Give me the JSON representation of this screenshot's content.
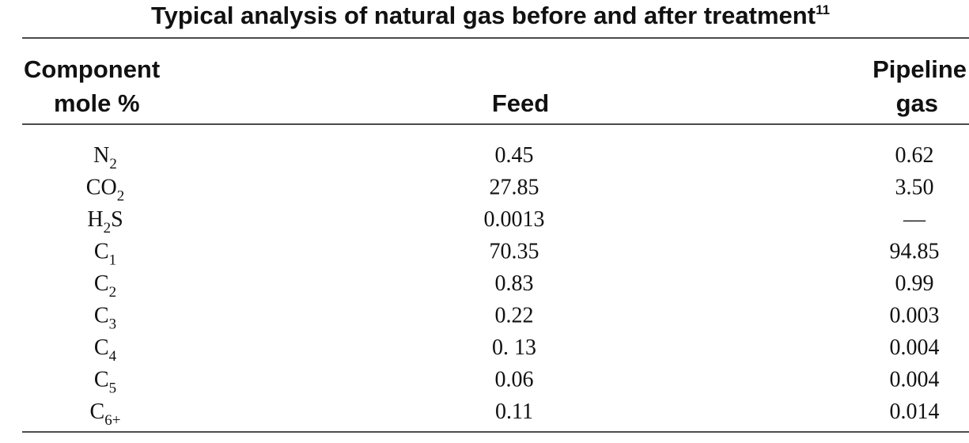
{
  "title": {
    "text": "Typical analysis of natural gas before and after treatment",
    "footnote": "11"
  },
  "table": {
    "header": {
      "component": [
        "Component",
        "mole %"
      ],
      "feed": "Feed",
      "pipeline": [
        "Pipeline",
        "gas"
      ]
    },
    "rows": [
      {
        "component": [
          {
            "text": "N"
          },
          {
            "sub": "2"
          }
        ],
        "feed": "0.45",
        "pipeline": "0.62"
      },
      {
        "component": [
          {
            "text": "CO"
          },
          {
            "sub": "2"
          }
        ],
        "feed": "27.85",
        "pipeline": "3.50"
      },
      {
        "component": [
          {
            "text": "H"
          },
          {
            "sub": "2"
          },
          {
            "text": "S"
          }
        ],
        "feed": "0.0013",
        "pipeline": "—"
      },
      {
        "component": [
          {
            "text": "C"
          },
          {
            "sub": "1"
          }
        ],
        "feed": "70.35",
        "pipeline": "94.85"
      },
      {
        "component": [
          {
            "text": "C"
          },
          {
            "sub": "2"
          }
        ],
        "feed": "0.83",
        "pipeline": "0.99"
      },
      {
        "component": [
          {
            "text": "C"
          },
          {
            "sub": "3"
          }
        ],
        "feed": "0.22",
        "pipeline": "0.003"
      },
      {
        "component": [
          {
            "text": "C"
          },
          {
            "sub": "4"
          }
        ],
        "feed": "0. 13",
        "pipeline": "0.004"
      },
      {
        "component": [
          {
            "text": "C"
          },
          {
            "sub": "5"
          }
        ],
        "feed": "0.06",
        "pipeline": "0.004"
      },
      {
        "component": [
          {
            "text": "C"
          },
          {
            "sub": "6+"
          }
        ],
        "feed": "0.11",
        "pipeline": "0.014"
      }
    ]
  }
}
